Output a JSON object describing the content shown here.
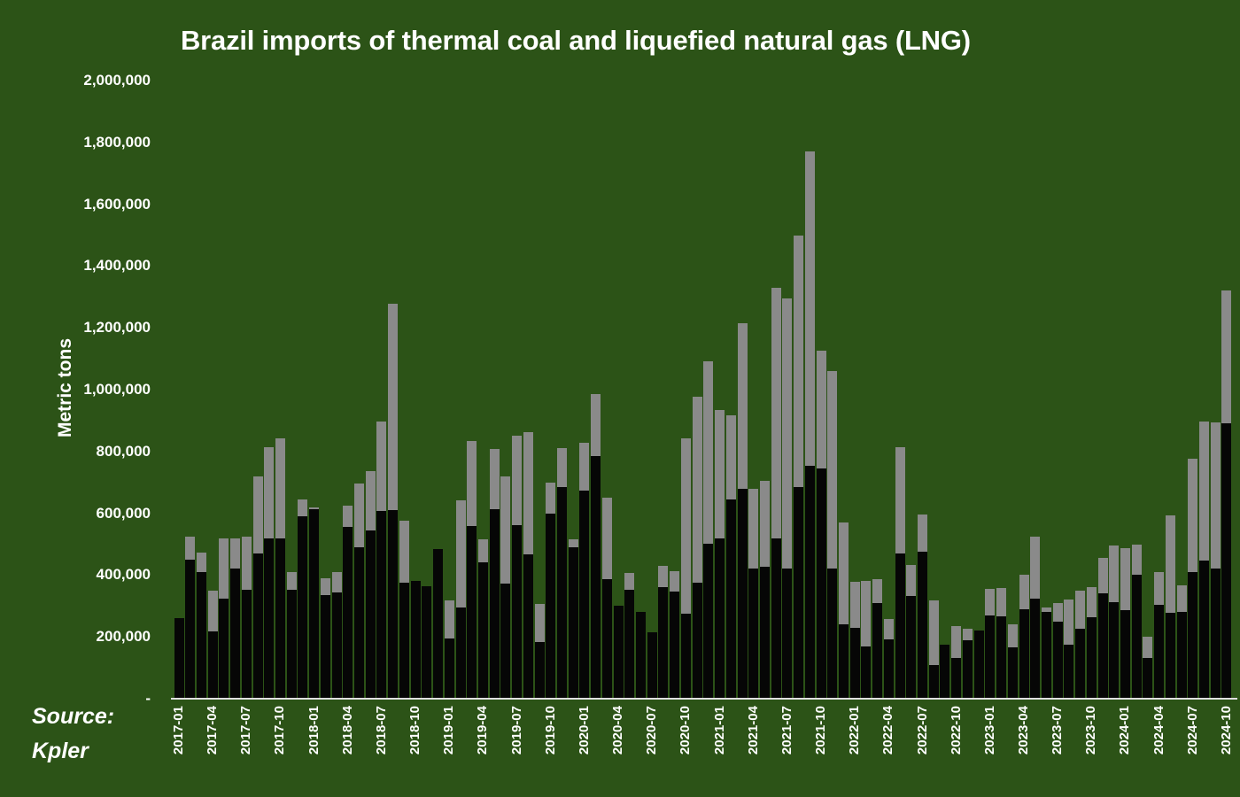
{
  "title": "Brazil imports of thermal coal and liquefied natural gas (LNG)",
  "y_axis": {
    "title": "Metric tons",
    "ticks": [
      {
        "label": "2,000,000",
        "value": 2000000
      },
      {
        "label": "1,800,000",
        "value": 1800000
      },
      {
        "label": "1,600,000",
        "value": 1600000
      },
      {
        "label": "1,400,000",
        "value": 1400000
      },
      {
        "label": "1,200,000",
        "value": 1200000
      },
      {
        "label": "1,000,000",
        "value": 1000000
      },
      {
        "label": "800,000",
        "value": 800000
      },
      {
        "label": "600,000",
        "value": 600000
      },
      {
        "label": "400,000",
        "value": 400000
      },
      {
        "label": "200,000",
        "value": 200000
      },
      {
        "label": "-",
        "value": 0
      }
    ]
  },
  "source": {
    "line1": "Source:",
    "line2": "Kpler"
  },
  "colors": {
    "background": "#2c5317",
    "coal": "#060606",
    "lng": "#8a8a8a",
    "axis_line": "#e0e0e0",
    "text": "#ffffff"
  },
  "chart_data": {
    "type": "bar",
    "stacked": true,
    "title": "Brazil imports of thermal coal and liquefied natural gas (LNG)",
    "xlabel": "",
    "ylabel": "Metric tons",
    "ylim": [
      0,
      2000000
    ],
    "grid": false,
    "legend": "none",
    "x_tick_every": 3,
    "categories": [
      "2017-01",
      "2017-02",
      "2017-03",
      "2017-04",
      "2017-05",
      "2017-06",
      "2017-07",
      "2017-08",
      "2017-09",
      "2017-10",
      "2017-11",
      "2017-12",
      "2018-01",
      "2018-02",
      "2018-03",
      "2018-04",
      "2018-05",
      "2018-06",
      "2018-07",
      "2018-08",
      "2018-09",
      "2018-10",
      "2018-11",
      "2018-12",
      "2019-01",
      "2019-02",
      "2019-03",
      "2019-04",
      "2019-05",
      "2019-06",
      "2019-07",
      "2019-08",
      "2019-09",
      "2019-10",
      "2019-11",
      "2019-12",
      "2020-01",
      "2020-02",
      "2020-03",
      "2020-04",
      "2020-05",
      "2020-06",
      "2020-07",
      "2020-08",
      "2020-09",
      "2020-10",
      "2020-11",
      "2020-12",
      "2021-01",
      "2021-02",
      "2021-03",
      "2021-04",
      "2021-05",
      "2021-06",
      "2021-07",
      "2021-08",
      "2021-09",
      "2021-10",
      "2021-11",
      "2021-12",
      "2022-01",
      "2022-02",
      "2022-03",
      "2022-04",
      "2022-05",
      "2022-06",
      "2022-07",
      "2022-08",
      "2022-09",
      "2022-10",
      "2022-11",
      "2022-12",
      "2023-01",
      "2023-02",
      "2023-03",
      "2023-04",
      "2023-05",
      "2023-06",
      "2023-07",
      "2023-08",
      "2023-09",
      "2023-10",
      "2023-11",
      "2023-12",
      "2024-01",
      "2024-02",
      "2024-03",
      "2024-04",
      "2024-05",
      "2024-06",
      "2024-07",
      "2024-08",
      "2024-09",
      "2024-10"
    ],
    "series": [
      {
        "name": "Thermal coal",
        "color": "#060606",
        "values": [
          262000,
          451000,
          410000,
          218000,
          324000,
          420000,
          351000,
          469000,
          520000,
          520000,
          351000,
          590000,
          612000,
          335000,
          343000,
          555000,
          490000,
          545000,
          608000,
          610000,
          375000,
          381000,
          365000,
          485000,
          196000,
          296000,
          559000,
          442000,
          614000,
          372000,
          562000,
          466000,
          184000,
          600000,
          684000,
          490000,
          674000,
          786000,
          387000,
          300000,
          351000,
          282000,
          215000,
          361000,
          346000,
          275000,
          375000,
          500000,
          520000,
          645000,
          680000,
          420000,
          428000,
          520000,
          420000,
          685000,
          755000,
          745000,
          420000,
          240000,
          230000,
          169000,
          308000,
          193000,
          469000,
          332000,
          475000,
          110000,
          176000,
          133000,
          188000,
          222000,
          270000,
          267000,
          165000,
          290000,
          325000,
          282000,
          248000,
          174000,
          225000,
          265000,
          342000,
          313000,
          286000,
          400000,
          133000,
          305000,
          277000,
          282000,
          410000,
          447000,
          420000,
          892000
        ]
      },
      {
        "name": "LNG",
        "color": "#8a8a8a",
        "values": [
          0,
          72000,
          63000,
          133000,
          196000,
          100000,
          173000,
          249000,
          295000,
          321000,
          58000,
          55000,
          6000,
          55000,
          68000,
          70000,
          205000,
          190000,
          289000,
          667000,
          202000,
          0,
          0,
          0,
          122000,
          345000,
          275000,
          74000,
          194000,
          347000,
          288000,
          397000,
          124000,
          100000,
          128000,
          26000,
          153000,
          201000,
          263000,
          0,
          57000,
          0,
          0,
          69000,
          67000,
          566000,
          603000,
          593000,
          415000,
          273000,
          535000,
          258000,
          277000,
          810000,
          875000,
          815000,
          1015000,
          380000,
          640000,
          330000,
          147000,
          211000,
          79000,
          64000,
          346000,
          102000,
          120000,
          208000,
          0,
          103000,
          39000,
          0,
          86000,
          92000,
          76000,
          111000,
          200000,
          12000,
          62000,
          146000,
          126000,
          96000,
          114000,
          182000,
          201000,
          100000,
          67000,
          105000,
          315000,
          84000,
          367000,
          451000,
          473000,
          430000
        ]
      }
    ]
  }
}
